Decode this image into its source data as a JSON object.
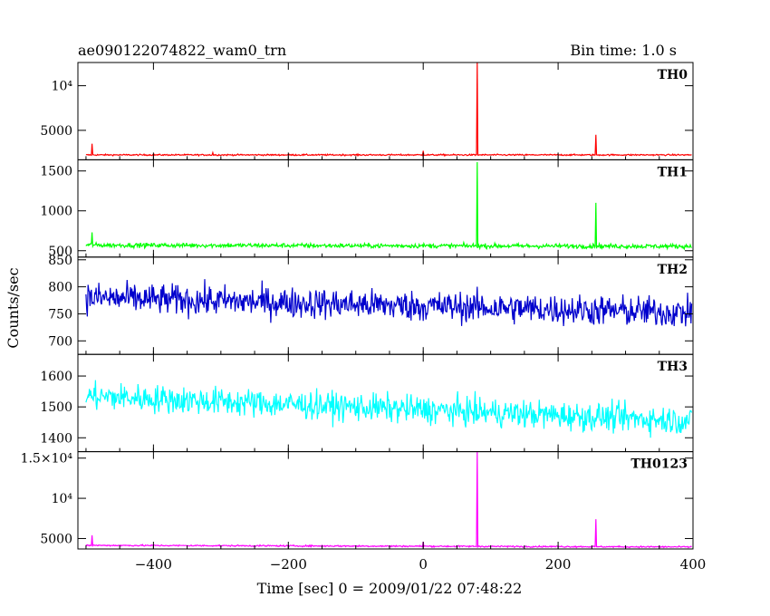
{
  "header": {
    "title": "ae090122074822_wam0_trn",
    "bin_time": "Bin time: 1.0 s"
  },
  "axes": {
    "xlabel": "Time [sec] 0 = 2009/01/22 07:48:22",
    "ylabel": "Counts/sec"
  },
  "chart_data": {
    "type": "line",
    "xlim": [
      -512,
      400
    ],
    "x_ticks": [
      {
        "value": -400,
        "label": "−400"
      },
      {
        "value": -200,
        "label": "−200"
      },
      {
        "value": 0,
        "label": "0"
      },
      {
        "value": 200,
        "label": "200"
      },
      {
        "value": 400,
        "label": "400"
      }
    ],
    "panels": [
      {
        "name": "TH0",
        "color": "#ff0000",
        "ylim": [
          1700,
          12600
        ],
        "y_ticks": [
          {
            "value": 5000,
            "label": "5000"
          },
          {
            "value": 10000,
            "label": "10⁴"
          }
        ],
        "baseline": 2250,
        "noise": 80,
        "drift": 0,
        "noise_drift": 0,
        "spikes": [
          {
            "x": -491,
            "value": 3500
          },
          {
            "x": -312,
            "value": 2500
          },
          {
            "x": 0,
            "value": 2700
          },
          {
            "x": 80,
            "value": 12600
          },
          {
            "x": 256,
            "value": 4500
          }
        ]
      },
      {
        "name": "TH1",
        "color": "#00ff00",
        "ylim": [
          420,
          1640
        ],
        "y_ticks": [
          {
            "value": 500,
            "label": "500"
          },
          {
            "value": 1000,
            "label": "1000"
          },
          {
            "value": 1500,
            "label": "1500"
          }
        ],
        "baseline": 570,
        "noise": 28,
        "drift": -15,
        "noise_drift": 0,
        "spikes": [
          {
            "x": -491,
            "value": 730
          },
          {
            "x": 80,
            "value": 1610
          },
          {
            "x": 256,
            "value": 1100
          }
        ]
      },
      {
        "name": "TH2",
        "color": "#0000cd",
        "ylim": [
          675,
          855
        ],
        "y_ticks": [
          {
            "value": 700,
            "label": "700"
          },
          {
            "value": 750,
            "label": "750"
          },
          {
            "value": 800,
            "label": "800"
          },
          {
            "value": 850,
            "label": "850"
          }
        ],
        "baseline": 780,
        "noise": 28,
        "drift": -28,
        "noise_drift": 0,
        "spikes": []
      },
      {
        "name": "TH3",
        "color": "#00ffff",
        "ylim": [
          1355,
          1670
        ],
        "y_ticks": [
          {
            "value": 1400,
            "label": "1400"
          },
          {
            "value": 1500,
            "label": "1500"
          },
          {
            "value": 1600,
            "label": "1600"
          }
        ],
        "baseline": 1535,
        "noise": 45,
        "drift": -80,
        "noise_drift": 0,
        "spikes": []
      },
      {
        "name": "TH0123",
        "color": "#ff00ff",
        "ylim": [
          3700,
          15800
        ],
        "y_ticks": [
          {
            "value": 5000,
            "label": "5000"
          },
          {
            "value": 10000,
            "label": "10⁴"
          },
          {
            "value": 15000,
            "label": "1.5×10⁴"
          }
        ],
        "baseline": 4150,
        "noise": 90,
        "drift": -200,
        "noise_drift": 0,
        "spikes": [
          {
            "x": -491,
            "value": 5400
          },
          {
            "x": 0,
            "value": 4600
          },
          {
            "x": 80,
            "value": 15800
          },
          {
            "x": 256,
            "value": 7400
          }
        ]
      }
    ]
  }
}
